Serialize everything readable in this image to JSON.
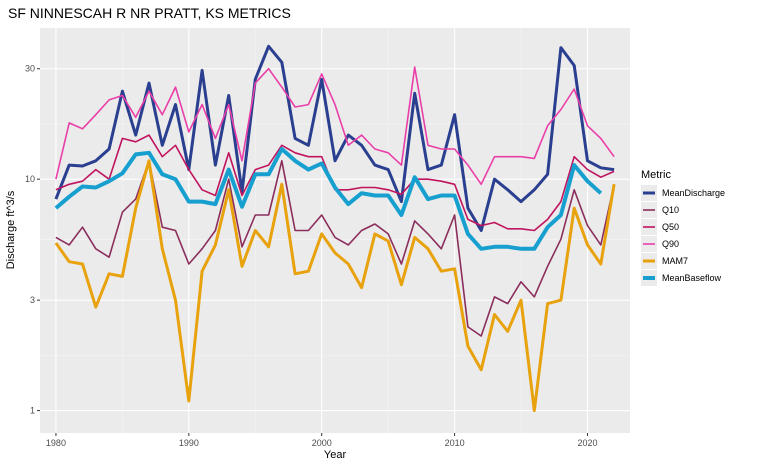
{
  "chart_data": {
    "type": "line",
    "title": "SF NINNESCAH R NR PRATT, KS  METRICS",
    "xlabel": "Year",
    "ylabel": "Discharge ft^3/s",
    "y_scale": "log",
    "xlim": [
      1978.8,
      2023.2
    ],
    "ylim": [
      0.8,
      45
    ],
    "x_ticks": [
      1980,
      1990,
      2000,
      2010,
      2020
    ],
    "y_ticks": [
      1,
      3,
      10,
      30
    ],
    "grid": true,
    "legend_title": "Metric",
    "legend_position": "right",
    "x": [
      1980,
      1981,
      1982,
      1983,
      1984,
      1985,
      1986,
      1987,
      1988,
      1989,
      1990,
      1991,
      1992,
      1993,
      1994,
      1995,
      1996,
      1997,
      1998,
      1999,
      2000,
      2001,
      2002,
      2003,
      2004,
      2005,
      2006,
      2007,
      2008,
      2009,
      2010,
      2011,
      2012,
      2013,
      2014,
      2015,
      2016,
      2017,
      2018,
      2019,
      2020,
      2021,
      2022
    ],
    "series": [
      {
        "name": "MeanDischarge",
        "color": "#2a3f8f",
        "width": 3,
        "values": [
          8.2,
          11.5,
          11.4,
          12,
          13.5,
          24,
          15.5,
          26,
          14,
          21,
          11,
          29.5,
          11.5,
          23,
          8.8,
          27,
          37.5,
          32,
          15,
          14,
          27,
          12,
          15.5,
          14,
          11.5,
          11,
          8,
          23.5,
          11,
          11.5,
          19,
          7.5,
          6,
          10,
          9,
          8,
          9,
          10.5,
          37,
          31,
          12,
          11.2,
          11
        ]
      },
      {
        "name": "Q10",
        "color": "#8b2e5c",
        "width": 1.6,
        "values": [
          5.6,
          5.2,
          6.2,
          5,
          4.6,
          7.2,
          8.2,
          12,
          6.2,
          6,
          4.3,
          5,
          6,
          10,
          5.1,
          7,
          7,
          12,
          6,
          6,
          7,
          5.6,
          5.2,
          6,
          6.4,
          5.8,
          4.3,
          6.6,
          5.8,
          5,
          7,
          2.3,
          2.1,
          3.1,
          2.9,
          3.6,
          3.1,
          4.2,
          5.5,
          9,
          6.3,
          5.2,
          9.5
        ]
      },
      {
        "name": "Q50",
        "color": "#c0145f",
        "width": 1.6,
        "values": [
          9,
          9.5,
          9.8,
          11,
          10,
          15,
          14.5,
          15.5,
          12.5,
          14,
          11,
          9,
          8.5,
          13,
          8.5,
          11,
          11.5,
          14,
          13,
          12.5,
          12.5,
          9,
          9,
          9.2,
          9.2,
          9,
          8.6,
          10,
          10,
          9.8,
          9.5,
          6.7,
          6.3,
          6.5,
          6.1,
          6.1,
          6,
          6.7,
          8,
          12.5,
          11,
          10.2,
          10.8
        ]
      },
      {
        "name": "Q90",
        "color": "#ea3fa8",
        "width": 1.6,
        "values": [
          10,
          17.5,
          16.5,
          19,
          22,
          23,
          18.5,
          24,
          19,
          25,
          16,
          21,
          15,
          21,
          12,
          26,
          30,
          25,
          20.5,
          21,
          28.5,
          21,
          14,
          15.5,
          13.5,
          13,
          11.5,
          30.5,
          14,
          13.5,
          13.5,
          11.5,
          9.5,
          12.5,
          12.5,
          12.5,
          12.3,
          17,
          20,
          24.5,
          17,
          15,
          12.5
        ]
      },
      {
        "name": "MAM7",
        "color": "#e8a20e",
        "width": 3,
        "values": [
          5.3,
          4.4,
          4.3,
          2.8,
          3.9,
          3.8,
          7.5,
          12,
          5,
          3,
          1.1,
          4,
          5.2,
          9,
          4.2,
          6,
          5.1,
          9.5,
          3.9,
          4,
          5.8,
          4.8,
          4.3,
          3.4,
          5.8,
          5.4,
          3.5,
          5.6,
          5,
          4,
          4.1,
          1.9,
          1.5,
          2.6,
          2.2,
          3,
          1,
          2.9,
          3,
          7.5,
          5.2,
          4.3,
          9.5
        ]
      },
      {
        "name": "MeanBaseflow",
        "color": "#17a0cf",
        "width": 4,
        "values": [
          7.5,
          8.4,
          9.3,
          9.2,
          9.8,
          10.6,
          12.8,
          13,
          10.5,
          10,
          8,
          8,
          7.8,
          11,
          7.6,
          10.5,
          10.5,
          13.5,
          12,
          11,
          11.7,
          9.2,
          7.8,
          8.7,
          8.5,
          8.5,
          7,
          10.2,
          8.2,
          8.5,
          8.5,
          5.8,
          5,
          5.1,
          5.1,
          5,
          5,
          6.2,
          7,
          11.5,
          9.8,
          8.7,
          null
        ]
      }
    ]
  }
}
